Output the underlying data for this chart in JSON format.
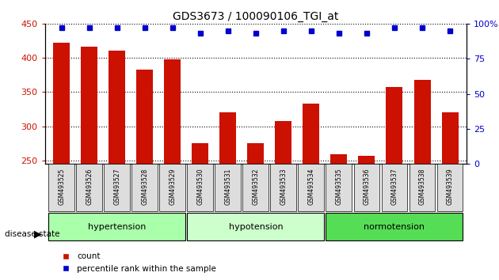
{
  "title": "GDS3673 / 100090106_TGI_at",
  "samples": [
    "GSM493525",
    "GSM493526",
    "GSM493527",
    "GSM493528",
    "GSM493529",
    "GSM493530",
    "GSM493531",
    "GSM493532",
    "GSM493533",
    "GSM493534",
    "GSM493535",
    "GSM493536",
    "GSM493537",
    "GSM493538",
    "GSM493539"
  ],
  "bar_values": [
    422,
    417,
    411,
    383,
    398,
    275,
    320,
    275,
    308,
    333,
    259,
    257,
    358,
    368,
    320
  ],
  "dot_values": [
    97,
    97,
    97,
    97,
    97,
    93,
    95,
    93,
    95,
    95,
    93,
    93,
    97,
    97,
    95
  ],
  "bar_color": "#CC1100",
  "dot_color": "#0000CC",
  "ylim_left": [
    245,
    450
  ],
  "ylim_right": [
    0,
    100
  ],
  "yticks_left": [
    250,
    300,
    350,
    400,
    450
  ],
  "yticks_right": [
    0,
    25,
    50,
    75,
    100
  ],
  "yticklabels_right": [
    "0",
    "25",
    "50",
    "75",
    "100%"
  ],
  "groups": [
    {
      "label": "hypertension",
      "start": 0,
      "end": 4,
      "color": "#AAFFAA"
    },
    {
      "label": "hypotension",
      "start": 5,
      "end": 9,
      "color": "#CCFFCC"
    },
    {
      "label": "normotension",
      "start": 10,
      "end": 14,
      "color": "#55DD55"
    }
  ],
  "group_label_prefix": "disease state",
  "legend_items": [
    {
      "label": "count",
      "color": "#CC1100"
    },
    {
      "label": "percentile rank within the sample",
      "color": "#0000CC"
    }
  ],
  "background_color": "#FFFFFF",
  "tick_label_bg": "#DDDDDD"
}
